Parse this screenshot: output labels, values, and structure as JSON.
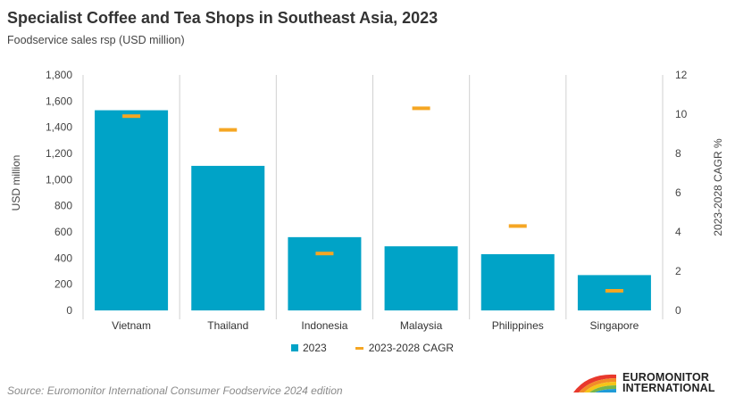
{
  "title": "Specialist Coffee and Tea Shops in  Southeast Asia, 2023",
  "subtitle": "Foodservice sales rsp (USD million)",
  "source": "Source: Euromonitor International Consumer Foodservice 2024 edition",
  "logo": {
    "line1": "EUROMONITOR",
    "line2": "INTERNATIONAL"
  },
  "colors": {
    "bar": "#00a3c7",
    "cagr": "#f5a623",
    "divider": "#d0d0d0"
  },
  "chart_data": {
    "type": "bar",
    "categories": [
      "Vietnam",
      "Thailand",
      "Indonesia",
      "Malaysia",
      "Philippines",
      "Singapore"
    ],
    "series": [
      {
        "name": "2023",
        "type": "bar",
        "axis": "left",
        "values": [
          1530,
          1105,
          560,
          490,
          430,
          270
        ]
      },
      {
        "name": "2023-2028 CAGR",
        "type": "marker",
        "axis": "right",
        "values": [
          9.9,
          9.2,
          2.9,
          10.3,
          4.3,
          1.0
        ]
      }
    ],
    "ylabel": "USD million",
    "ylim": [
      0,
      1800
    ],
    "yticks": [
      "0",
      "200",
      "400",
      "600",
      "800",
      "1,000",
      "1,200",
      "1,400",
      "1,600",
      "1,800"
    ],
    "y2label": "2023-2028 CAGR %",
    "y2lim": [
      0,
      12
    ],
    "y2ticks": [
      "0",
      "2",
      "4",
      "6",
      "8",
      "10",
      "12"
    ],
    "legend_position": "bottom"
  }
}
